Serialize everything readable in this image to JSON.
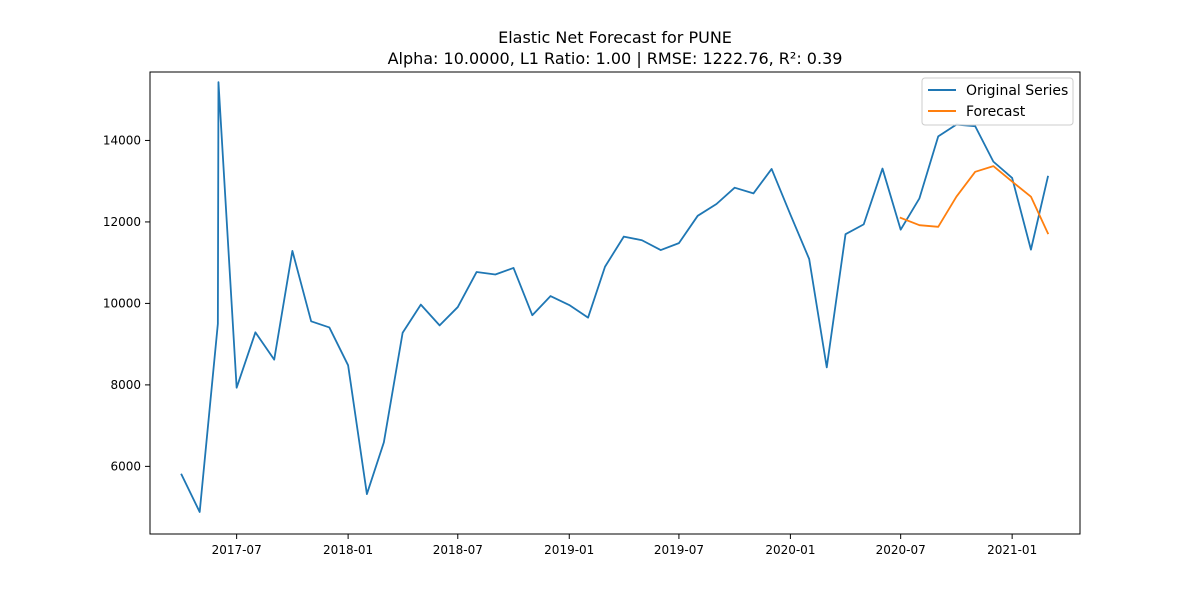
{
  "chart_data": {
    "type": "line",
    "title": "Elastic Net Forecast for PUNE",
    "subtitle": "Alpha: 10.0000, L1 Ratio: 1.00 | RMSE: 1222.76, R²: 0.39",
    "xlabel": "",
    "ylabel": "",
    "xlim": [
      "2017-02-08",
      "2021-04-23"
    ],
    "ylim": [
      4340,
      15680
    ],
    "x_ticks": [
      "2017-07-01",
      "2018-01-01",
      "2018-07-01",
      "2019-01-01",
      "2019-07-01",
      "2020-01-01",
      "2020-07-01",
      "2021-01-01"
    ],
    "x_tick_labels": [
      "2017-07",
      "2018-01",
      "2018-07",
      "2019-01",
      "2019-07",
      "2020-01",
      "2020-07",
      "2021-01"
    ],
    "y_ticks": [
      6000,
      8000,
      10000,
      12000,
      14000
    ],
    "y_tick_labels": [
      "6000",
      "8000",
      "10000",
      "12000",
      "14000"
    ],
    "grid": false,
    "legend_position": "top-right",
    "series": [
      {
        "name": "Original Series",
        "color": "#1f77b4",
        "x": [
          "2017-04-01",
          "2017-05-01",
          "2017-05-31",
          "2017-06-01",
          "2017-07-01",
          "2017-08-01",
          "2017-09-01",
          "2017-10-01",
          "2017-11-01",
          "2017-12-01",
          "2018-01-01",
          "2018-02-01",
          "2018-03-01",
          "2018-04-01",
          "2018-05-01",
          "2018-06-01",
          "2018-07-01",
          "2018-08-01",
          "2018-09-01",
          "2018-10-01",
          "2018-11-01",
          "2018-12-01",
          "2019-01-01",
          "2019-02-01",
          "2019-03-01",
          "2019-04-01",
          "2019-05-01",
          "2019-06-01",
          "2019-07-01",
          "2019-08-01",
          "2019-09-01",
          "2019-10-01",
          "2019-11-01",
          "2019-12-01",
          "2020-01-01",
          "2020-02-01",
          "2020-03-01",
          "2020-04-01",
          "2020-05-01",
          "2020-06-01",
          "2020-07-01",
          "2020-08-01",
          "2020-09-01",
          "2020-10-01",
          "2020-11-01",
          "2020-12-01",
          "2021-01-01",
          "2021-02-01",
          "2021-03-01"
        ],
        "values": [
          5800,
          4880,
          9500,
          15430,
          7930,
          9290,
          8620,
          11290,
          9560,
          9410,
          8480,
          5320,
          6590,
          9280,
          9970,
          9460,
          9910,
          10770,
          10710,
          10870,
          9710,
          10180,
          9960,
          9650,
          10900,
          11640,
          11550,
          11310,
          11480,
          12150,
          12440,
          12840,
          12700,
          13300,
          12180,
          11090,
          8430,
          11700,
          11940,
          13310,
          11810,
          12580,
          14100,
          14390,
          14350,
          13480,
          13080,
          11320,
          13110
        ]
      },
      {
        "name": "Forecast",
        "color": "#ff7f0e",
        "x": [
          "2020-07-01",
          "2020-08-01",
          "2020-09-01",
          "2020-10-01",
          "2020-11-01",
          "2020-12-01",
          "2021-01-01",
          "2021-02-01",
          "2021-03-01"
        ],
        "values": [
          12100,
          11920,
          11880,
          12620,
          13230,
          13370,
          12990,
          12620,
          11720
        ]
      }
    ]
  }
}
